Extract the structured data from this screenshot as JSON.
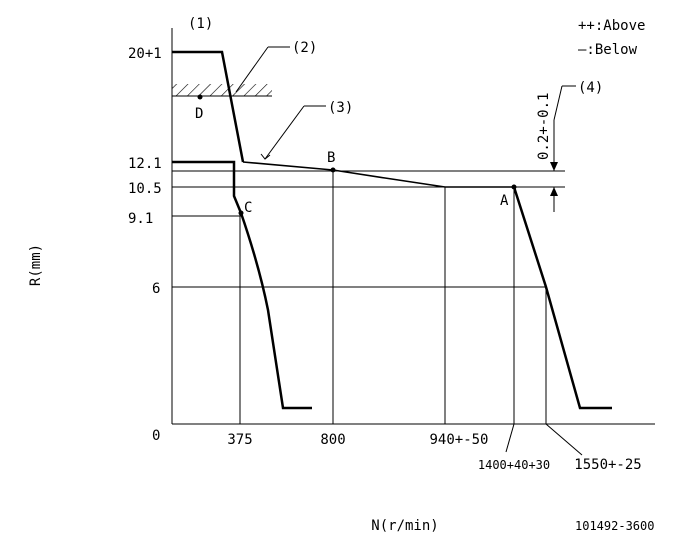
{
  "legend": {
    "above": "++:Above",
    "below": "—:Below"
  },
  "callouts": {
    "c1": "(1)",
    "c2": "(2)",
    "c3": "(3)",
    "c4": "(4)"
  },
  "axes": {
    "y_label": "R(mm)",
    "x_label": "N(r/min)",
    "y_ticks": [
      "20+1",
      "12.1",
      "10.5",
      "9.1",
      "6",
      "0"
    ],
    "x_ticks": [
      "375",
      "800",
      "940+-50",
      "1400+40+30",
      "1550+-25"
    ]
  },
  "points": {
    "a": "A",
    "b": "B",
    "c": "C",
    "d": "D"
  },
  "dimension_label": "0.2+-0.1",
  "doc_number": "101492-3600",
  "chart_data": {
    "type": "line",
    "xlabel": "N(r/min)",
    "ylabel": "R(mm)",
    "series": [
      {
        "x": [
          375,
          800,
          940,
          1400,
          1550
        ],
        "y": [
          12.1,
          12.1,
          10.5,
          10.5,
          6
        ]
      },
      {
        "x": [
          375
        ],
        "y": [
          9.1
        ]
      }
    ],
    "points": [
      {
        "label": "A",
        "x": 1400,
        "y": 10.5
      },
      {
        "label": "B",
        "x": 800,
        "y": 12.1
      },
      {
        "label": "C",
        "x": 375,
        "y": 9.1
      }
    ]
  }
}
